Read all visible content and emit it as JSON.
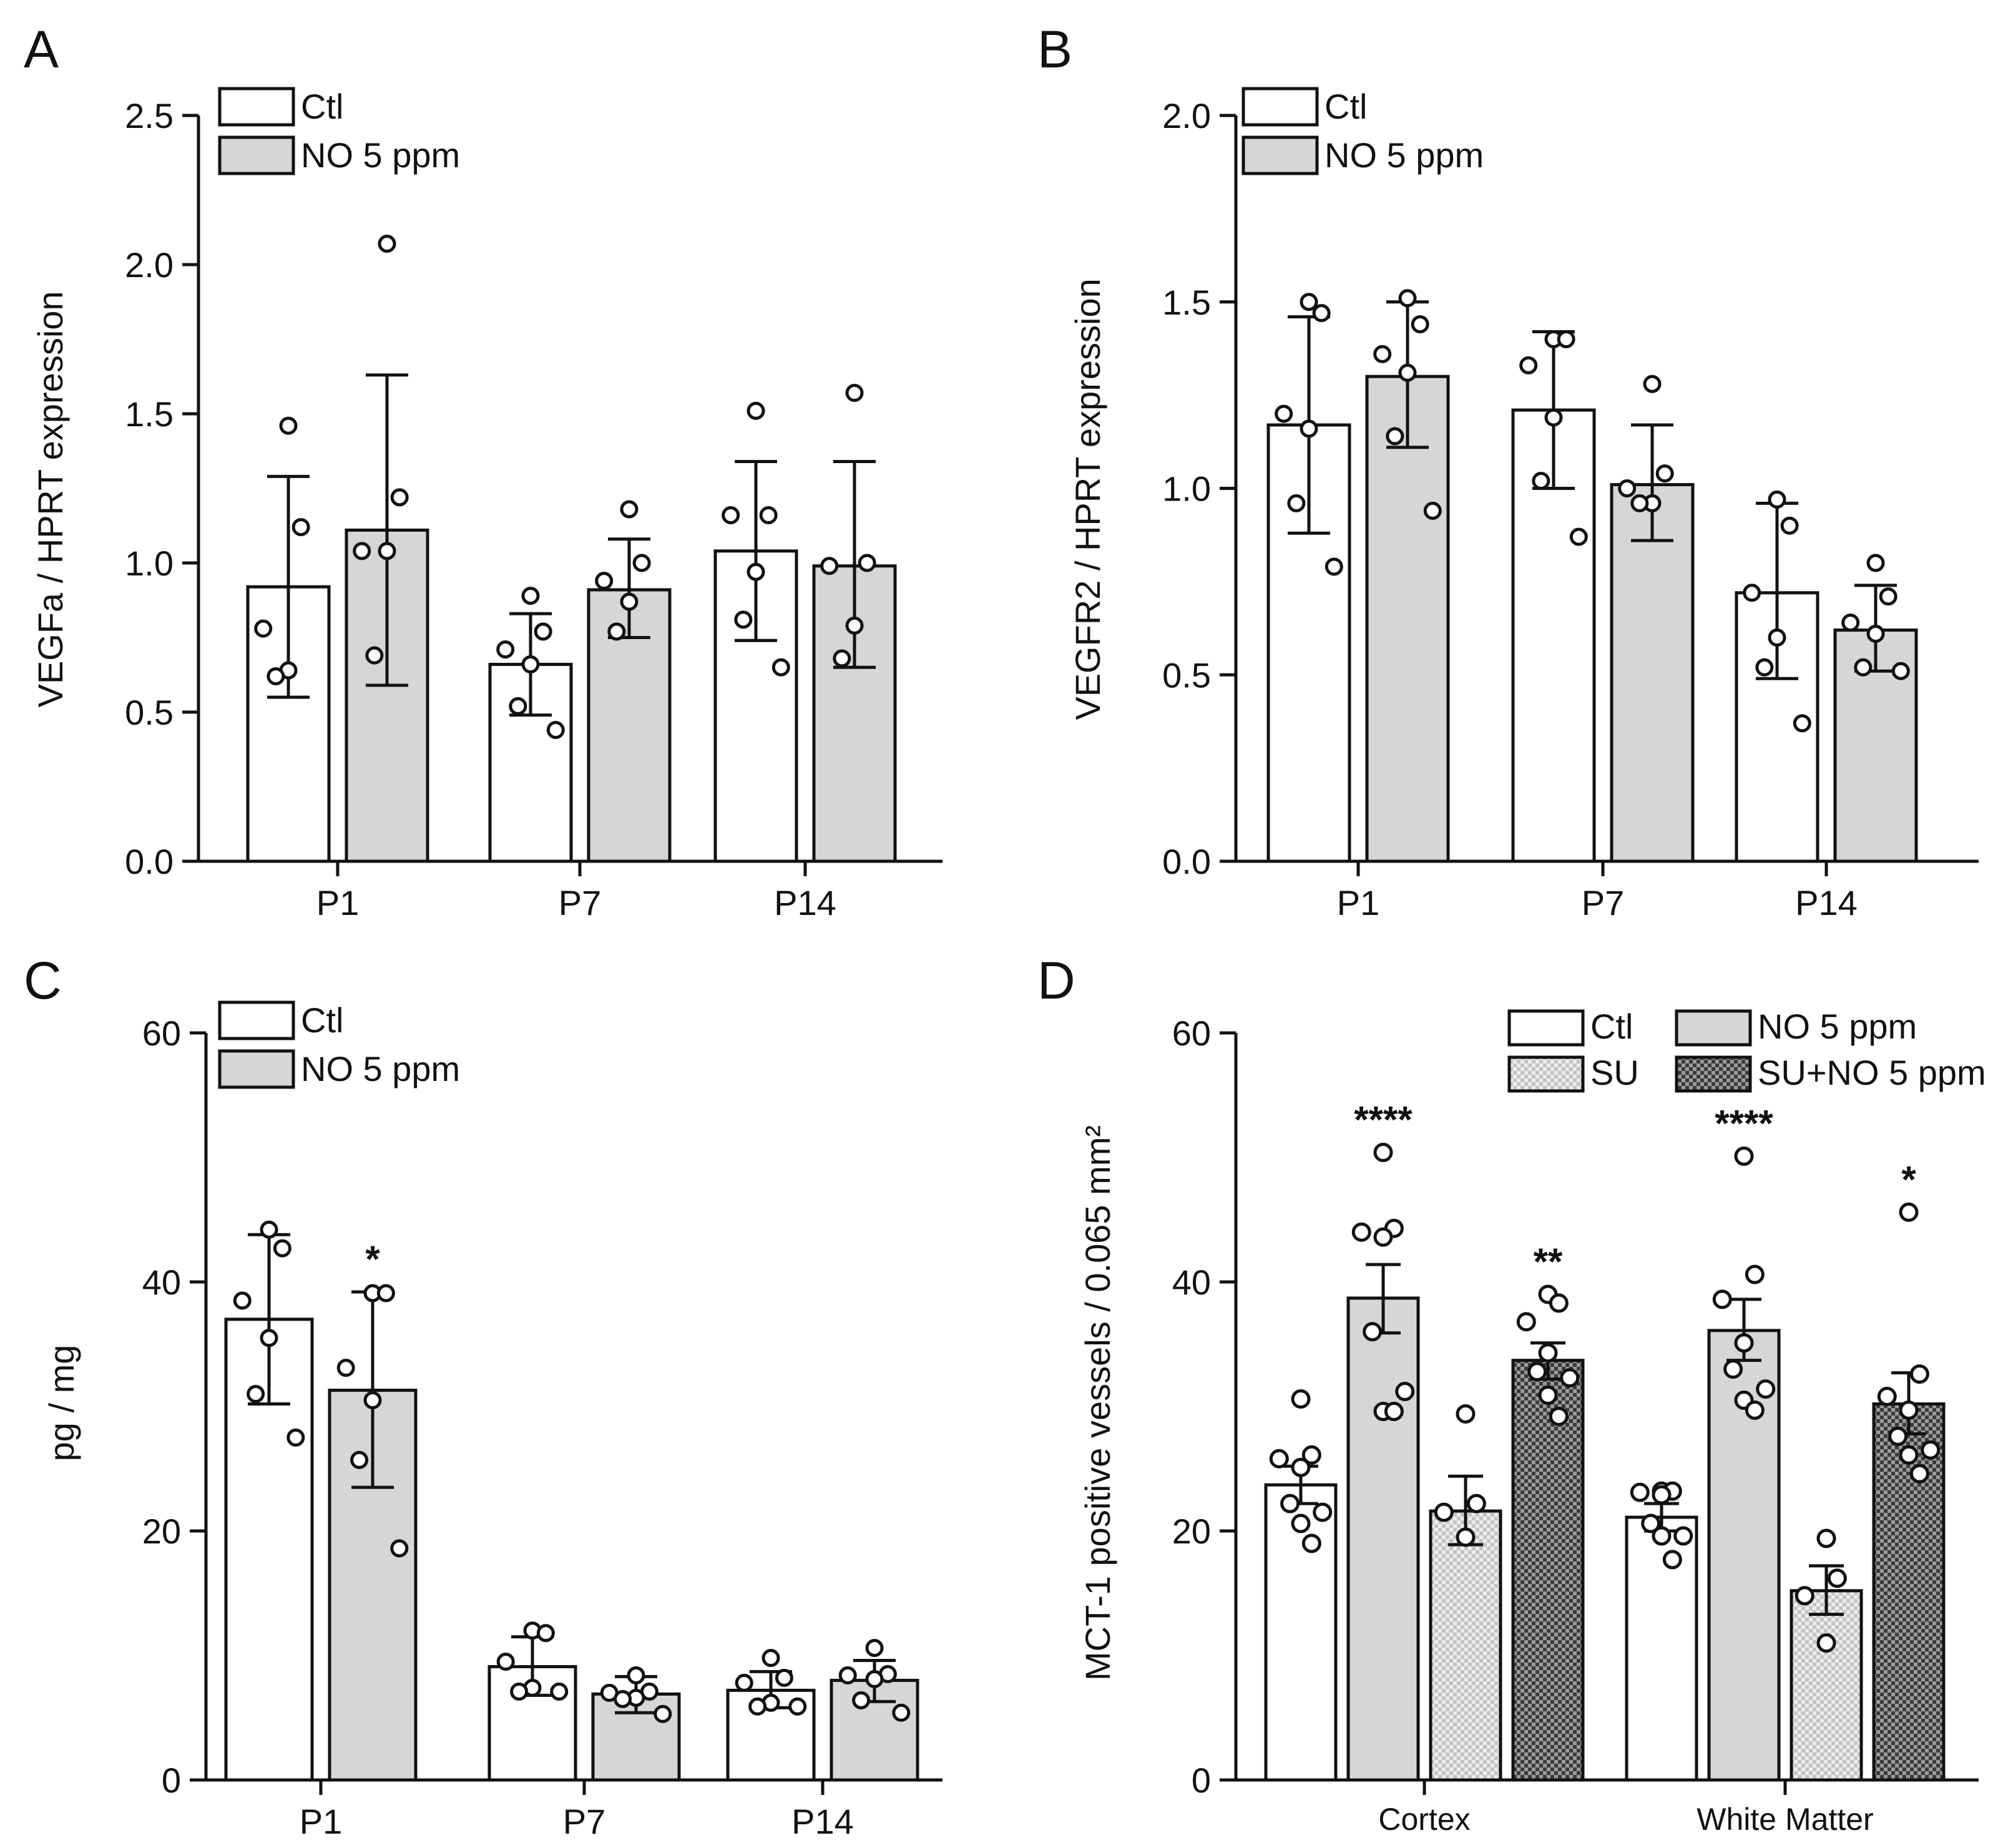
{
  "colors": {
    "ctl": "#ffffff",
    "no": "#d6d6d6",
    "su": "#e3e3e3",
    "su_no": "#555555",
    "stroke": "#111111"
  },
  "chart_data": [
    {
      "panel": "A",
      "type": "bar",
      "ylabel": "VEGFa / HPRT expression",
      "ylim": [
        0,
        2.5
      ],
      "yticks": [
        "0.0",
        "0.5",
        "1.0",
        "1.5",
        "2.0",
        "2.5"
      ],
      "categories": [
        "P1",
        "P7",
        "P14"
      ],
      "legend": [
        "Ctl",
        "NO 5 ppm"
      ],
      "series": [
        {
          "name": "Ctl",
          "values": [
            0.92,
            0.66,
            1.04
          ],
          "error_low": [
            0.55,
            0.49,
            0.74
          ],
          "error_high": [
            1.29,
            0.83,
            1.34
          ],
          "points": [
            [
              1.46,
              1.12,
              0.78,
              0.64,
              0.62
            ],
            [
              0.89,
              0.77,
              0.71,
              0.66,
              0.52,
              0.44
            ],
            [
              1.51,
              1.16,
              1.16,
              0.97,
              0.81,
              0.65
            ]
          ]
        },
        {
          "name": "NO 5 ppm",
          "values": [
            1.11,
            0.91,
            0.99
          ],
          "error_low": [
            0.59,
            0.75,
            0.65
          ],
          "error_high": [
            1.63,
            1.08,
            1.34
          ],
          "points": [
            [
              2.07,
              1.22,
              1.04,
              1.04,
              0.69
            ],
            [
              1.18,
              1.0,
              0.94,
              0.87,
              0.77
            ],
            [
              1.57,
              1.0,
              0.99,
              0.79,
              0.68
            ]
          ]
        }
      ],
      "annotations": [],
      "letter": "A"
    },
    {
      "panel": "B",
      "type": "bar",
      "ylabel": "VEGFR2 / HPRT expression",
      "ylim": [
        0,
        2.0
      ],
      "yticks": [
        "0.0",
        "0.5",
        "1.0",
        "1.5",
        "2.0"
      ],
      "categories": [
        "P1",
        "P7",
        "P14"
      ],
      "legend": [
        "Ctl",
        "NO 5 ppm"
      ],
      "series": [
        {
          "name": "Ctl",
          "values": [
            1.17,
            1.21,
            0.72
          ],
          "error_low": [
            0.88,
            1.0,
            0.49
          ],
          "error_high": [
            1.46,
            1.42,
            0.96
          ],
          "points": [
            [
              1.5,
              1.47,
              1.2,
              1.16,
              0.96,
              0.79
            ],
            [
              1.4,
              1.4,
              1.33,
              1.19,
              1.02,
              0.87
            ],
            [
              0.97,
              0.9,
              0.72,
              0.6,
              0.52,
              0.37
            ]
          ]
        },
        {
          "name": "NO 5 ppm",
          "values": [
            1.3,
            1.01,
            0.62
          ],
          "error_low": [
            1.11,
            0.86,
            0.51
          ],
          "error_high": [
            1.5,
            1.17,
            0.74
          ],
          "points": [
            [
              1.51,
              1.44,
              1.36,
              1.31,
              1.14,
              0.94
            ],
            [
              1.28,
              1.04,
              1.0,
              0.96,
              0.96
            ],
            [
              0.8,
              0.71,
              0.64,
              0.61,
              0.52,
              0.51
            ]
          ]
        }
      ],
      "annotations": [],
      "letter": "B"
    },
    {
      "panel": "C",
      "type": "bar",
      "ylabel": "pg / mg",
      "ylim": [
        0,
        60
      ],
      "yticks": [
        "0",
        "20",
        "40",
        "60"
      ],
      "categories": [
        "P1",
        "P7",
        "P14"
      ],
      "legend": [
        "Ctl",
        "NO 5 ppm"
      ],
      "series": [
        {
          "name": "Ctl",
          "values": [
            37.0,
            9.1,
            7.2
          ],
          "error_low": [
            30.2,
            6.8,
            5.8
          ],
          "error_high": [
            43.8,
            11.5,
            8.7
          ],
          "points": [
            [
              44.2,
              42.7,
              38.5,
              35.5,
              31.0,
              27.5
            ],
            [
              12.0,
              11.8,
              9.5,
              7.4,
              7.1,
              7.1
            ],
            [
              9.8,
              8.2,
              7.8,
              6.2,
              5.9,
              5.9
            ]
          ]
        },
        {
          "name": "NO 5 ppm",
          "values": [
            31.3,
            6.9,
            8.0
          ],
          "error_low": [
            23.5,
            5.4,
            6.3
          ],
          "error_high": [
            39.2,
            8.3,
            9.6
          ],
          "points": [
            [
              39.1,
              39.1,
              33.1,
              30.5,
              25.7,
              18.6
            ],
            [
              8.4,
              7.1,
              7.0,
              6.6,
              6.5,
              5.3
            ],
            [
              10.6,
              8.5,
              8.4,
              8.1,
              6.4,
              5.4
            ]
          ]
        }
      ],
      "annotations": [
        {
          "category": "P1",
          "series": 1,
          "text": "*"
        }
      ],
      "letter": "C"
    },
    {
      "panel": "D",
      "type": "bar",
      "ylabel": "MCT-1 positive vessels / 0.065 mm²",
      "ylim": [
        0,
        60
      ],
      "yticks": [
        "0",
        "20",
        "40",
        "60"
      ],
      "categories": [
        "Cortex",
        "White  Matter"
      ],
      "legend": [
        "Ctl",
        "NO 5 ppm",
        "SU",
        "SU+NO 5 ppm"
      ],
      "series": [
        {
          "name": "Ctl",
          "values": [
            23.7,
            21.1
          ],
          "error_low": [
            22.2,
            20.0
          ],
          "error_high": [
            25.2,
            22.2
          ],
          "points": [
            [
              30.6,
              26.1,
              25.8,
              25.1,
              22.2,
              21.5,
              20.6,
              19.0
            ],
            [
              23.2,
              23.2,
              23.1,
              22.9,
              20.6,
              19.6,
              19.6,
              17.7
            ]
          ]
        },
        {
          "name": "NO 5 ppm",
          "values": [
            38.7,
            36.1
          ],
          "error_low": [
            35.9,
            33.7
          ],
          "error_high": [
            41.4,
            38.6
          ],
          "points": [
            [
              50.4,
              44.3,
              44.0,
              43.6,
              36.0,
              31.2,
              29.6,
              29.6
            ],
            [
              50.1,
              40.6,
              38.6,
              35.1,
              33.0,
              31.4,
              30.5,
              29.7
            ]
          ]
        },
        {
          "name": "SU",
          "values": [
            21.6,
            15.2
          ],
          "error_low": [
            18.9,
            13.3
          ],
          "error_high": [
            24.4,
            17.2
          ],
          "points": [
            [
              29.4,
              22.2,
              21.5,
              19.5
            ],
            [
              19.4,
              16.2,
              14.8,
              11.0
            ]
          ]
        },
        {
          "name": "SU+NO 5 ppm",
          "values": [
            33.7,
            30.2
          ],
          "error_low": [
            32.2,
            27.8
          ],
          "error_high": [
            35.1,
            32.7
          ],
          "points": [
            [
              39.0,
              38.3,
              36.8,
              34.3,
              32.8,
              32.3,
              30.9,
              29.2
            ],
            [
              45.6,
              32.6,
              30.8,
              29.7,
              27.6,
              26.5,
              26.1,
              24.6
            ]
          ]
        }
      ],
      "annotations": [
        {
          "category": "Cortex",
          "series": 1,
          "text": "****"
        },
        {
          "category": "Cortex",
          "series": 3,
          "text": "**"
        },
        {
          "category": "White  Matter",
          "series": 1,
          "text": "****"
        },
        {
          "category": "White  Matter",
          "series": 3,
          "text": "*"
        }
      ],
      "letter": "D"
    }
  ]
}
